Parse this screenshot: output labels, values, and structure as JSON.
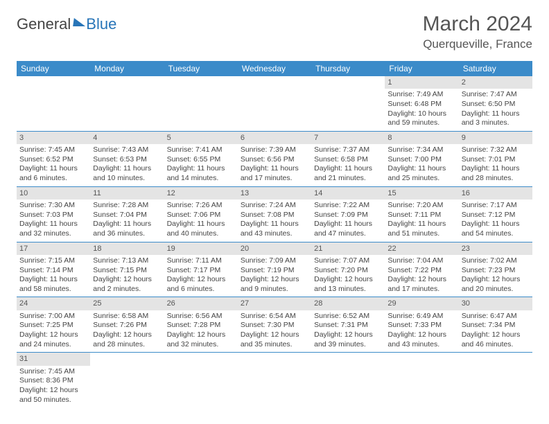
{
  "brand": {
    "main": "General",
    "sub": "Blue"
  },
  "title": "March 2024",
  "location": "Querqueville, France",
  "header_bg": "#3b8bc9",
  "daynum_bg": "#e4e4e4",
  "days": [
    "Sunday",
    "Monday",
    "Tuesday",
    "Wednesday",
    "Thursday",
    "Friday",
    "Saturday"
  ],
  "weeks": [
    [
      null,
      null,
      null,
      null,
      null,
      {
        "n": "1",
        "sr": "Sunrise: 7:49 AM",
        "ss": "Sunset: 6:48 PM",
        "dl": "Daylight: 10 hours and 59 minutes."
      },
      {
        "n": "2",
        "sr": "Sunrise: 7:47 AM",
        "ss": "Sunset: 6:50 PM",
        "dl": "Daylight: 11 hours and 3 minutes."
      }
    ],
    [
      {
        "n": "3",
        "sr": "Sunrise: 7:45 AM",
        "ss": "Sunset: 6:52 PM",
        "dl": "Daylight: 11 hours and 6 minutes."
      },
      {
        "n": "4",
        "sr": "Sunrise: 7:43 AM",
        "ss": "Sunset: 6:53 PM",
        "dl": "Daylight: 11 hours and 10 minutes."
      },
      {
        "n": "5",
        "sr": "Sunrise: 7:41 AM",
        "ss": "Sunset: 6:55 PM",
        "dl": "Daylight: 11 hours and 14 minutes."
      },
      {
        "n": "6",
        "sr": "Sunrise: 7:39 AM",
        "ss": "Sunset: 6:56 PM",
        "dl": "Daylight: 11 hours and 17 minutes."
      },
      {
        "n": "7",
        "sr": "Sunrise: 7:37 AM",
        "ss": "Sunset: 6:58 PM",
        "dl": "Daylight: 11 hours and 21 minutes."
      },
      {
        "n": "8",
        "sr": "Sunrise: 7:34 AM",
        "ss": "Sunset: 7:00 PM",
        "dl": "Daylight: 11 hours and 25 minutes."
      },
      {
        "n": "9",
        "sr": "Sunrise: 7:32 AM",
        "ss": "Sunset: 7:01 PM",
        "dl": "Daylight: 11 hours and 28 minutes."
      }
    ],
    [
      {
        "n": "10",
        "sr": "Sunrise: 7:30 AM",
        "ss": "Sunset: 7:03 PM",
        "dl": "Daylight: 11 hours and 32 minutes."
      },
      {
        "n": "11",
        "sr": "Sunrise: 7:28 AM",
        "ss": "Sunset: 7:04 PM",
        "dl": "Daylight: 11 hours and 36 minutes."
      },
      {
        "n": "12",
        "sr": "Sunrise: 7:26 AM",
        "ss": "Sunset: 7:06 PM",
        "dl": "Daylight: 11 hours and 40 minutes."
      },
      {
        "n": "13",
        "sr": "Sunrise: 7:24 AM",
        "ss": "Sunset: 7:08 PM",
        "dl": "Daylight: 11 hours and 43 minutes."
      },
      {
        "n": "14",
        "sr": "Sunrise: 7:22 AM",
        "ss": "Sunset: 7:09 PM",
        "dl": "Daylight: 11 hours and 47 minutes."
      },
      {
        "n": "15",
        "sr": "Sunrise: 7:20 AM",
        "ss": "Sunset: 7:11 PM",
        "dl": "Daylight: 11 hours and 51 minutes."
      },
      {
        "n": "16",
        "sr": "Sunrise: 7:17 AM",
        "ss": "Sunset: 7:12 PM",
        "dl": "Daylight: 11 hours and 54 minutes."
      }
    ],
    [
      {
        "n": "17",
        "sr": "Sunrise: 7:15 AM",
        "ss": "Sunset: 7:14 PM",
        "dl": "Daylight: 11 hours and 58 minutes."
      },
      {
        "n": "18",
        "sr": "Sunrise: 7:13 AM",
        "ss": "Sunset: 7:15 PM",
        "dl": "Daylight: 12 hours and 2 minutes."
      },
      {
        "n": "19",
        "sr": "Sunrise: 7:11 AM",
        "ss": "Sunset: 7:17 PM",
        "dl": "Daylight: 12 hours and 6 minutes."
      },
      {
        "n": "20",
        "sr": "Sunrise: 7:09 AM",
        "ss": "Sunset: 7:19 PM",
        "dl": "Daylight: 12 hours and 9 minutes."
      },
      {
        "n": "21",
        "sr": "Sunrise: 7:07 AM",
        "ss": "Sunset: 7:20 PM",
        "dl": "Daylight: 12 hours and 13 minutes."
      },
      {
        "n": "22",
        "sr": "Sunrise: 7:04 AM",
        "ss": "Sunset: 7:22 PM",
        "dl": "Daylight: 12 hours and 17 minutes."
      },
      {
        "n": "23",
        "sr": "Sunrise: 7:02 AM",
        "ss": "Sunset: 7:23 PM",
        "dl": "Daylight: 12 hours and 20 minutes."
      }
    ],
    [
      {
        "n": "24",
        "sr": "Sunrise: 7:00 AM",
        "ss": "Sunset: 7:25 PM",
        "dl": "Daylight: 12 hours and 24 minutes."
      },
      {
        "n": "25",
        "sr": "Sunrise: 6:58 AM",
        "ss": "Sunset: 7:26 PM",
        "dl": "Daylight: 12 hours and 28 minutes."
      },
      {
        "n": "26",
        "sr": "Sunrise: 6:56 AM",
        "ss": "Sunset: 7:28 PM",
        "dl": "Daylight: 12 hours and 32 minutes."
      },
      {
        "n": "27",
        "sr": "Sunrise: 6:54 AM",
        "ss": "Sunset: 7:30 PM",
        "dl": "Daylight: 12 hours and 35 minutes."
      },
      {
        "n": "28",
        "sr": "Sunrise: 6:52 AM",
        "ss": "Sunset: 7:31 PM",
        "dl": "Daylight: 12 hours and 39 minutes."
      },
      {
        "n": "29",
        "sr": "Sunrise: 6:49 AM",
        "ss": "Sunset: 7:33 PM",
        "dl": "Daylight: 12 hours and 43 minutes."
      },
      {
        "n": "30",
        "sr": "Sunrise: 6:47 AM",
        "ss": "Sunset: 7:34 PM",
        "dl": "Daylight: 12 hours and 46 minutes."
      }
    ],
    [
      {
        "n": "31",
        "sr": "Sunrise: 7:45 AM",
        "ss": "Sunset: 8:36 PM",
        "dl": "Daylight: 12 hours and 50 minutes."
      },
      null,
      null,
      null,
      null,
      null,
      null
    ]
  ]
}
